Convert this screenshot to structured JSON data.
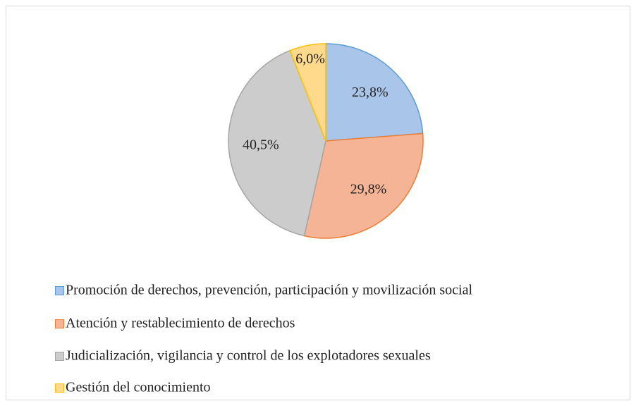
{
  "chart_data": {
    "type": "pie",
    "categories": [
      "Promoción de derechos, prevención, participación y movilización social",
      "Atención y restablecimiento de derechos",
      "Judicialización, vigilancia y control de los explotadores sexuales",
      "Gestión del conocimiento"
    ],
    "values": [
      23.8,
      29.8,
      40.5,
      6.0
    ],
    "value_labels": [
      "23,8%",
      "29,8%",
      "40,5%",
      "6,0%"
    ],
    "colors": [
      "#a9c5ea",
      "#f6b497",
      "#cccccc",
      "#ffd98c"
    ],
    "edge_colors": [
      "#5b9bd5",
      "#ed7d31",
      "#a5a5a5",
      "#ffc000"
    ],
    "legend": "bottom"
  }
}
